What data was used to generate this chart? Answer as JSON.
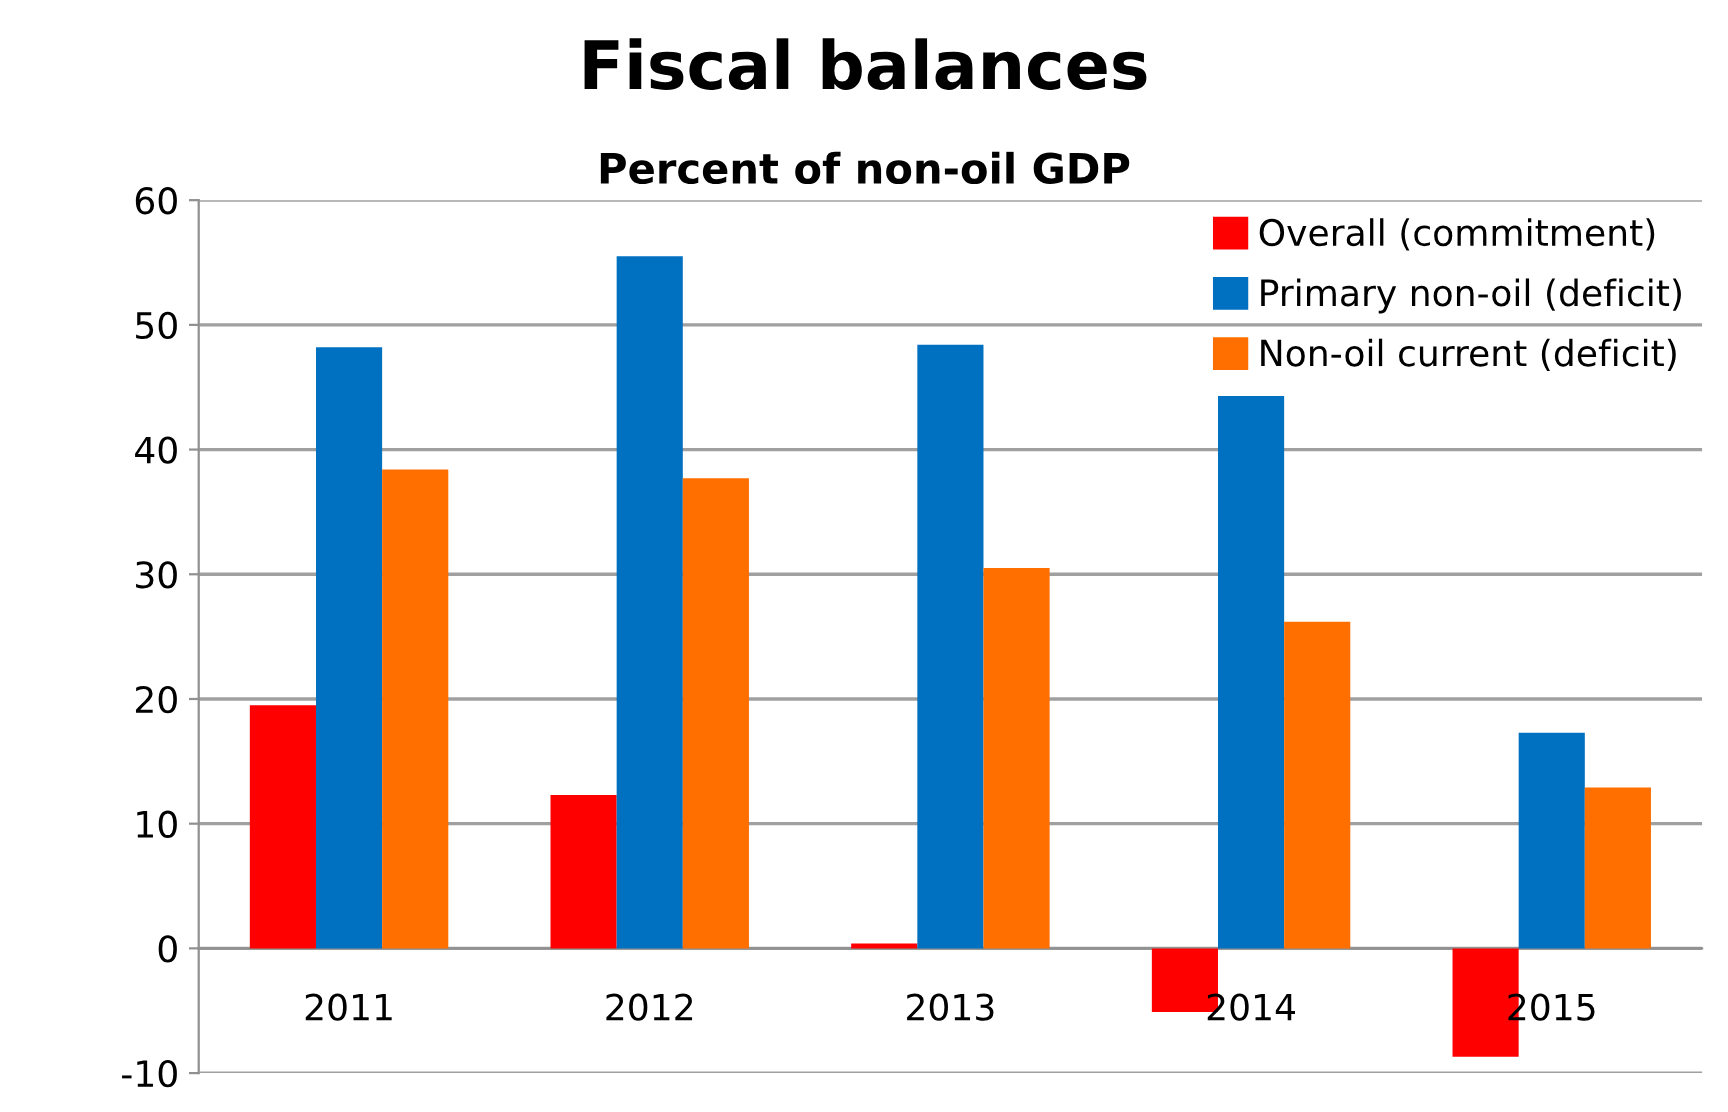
{
  "chart_data": {
    "type": "bar",
    "title": "Fiscal balances",
    "subtitle": "Percent of non-oil GDP",
    "categories": [
      "2011",
      "2012",
      "2013",
      "2014",
      "2015"
    ],
    "series": [
      {
        "name": "Overall (commitment)",
        "color": "#ff0000",
        "values": [
          19.5,
          12.3,
          0.4,
          -5.1,
          -8.7
        ]
      },
      {
        "name": "Primary non-oil (deficit)",
        "color": "#0070c0",
        "values": [
          48.2,
          55.5,
          48.4,
          44.3,
          17.3
        ]
      },
      {
        "name": "Non-oil current (deficit)",
        "color": "#ff6f00",
        "values": [
          38.4,
          37.7,
          30.5,
          26.2,
          12.9
        ]
      }
    ],
    "ylim": [
      -10,
      60
    ],
    "yticks": [
      -10,
      0,
      10,
      20,
      30,
      40,
      50,
      60
    ],
    "grid": "y",
    "legend": "top right"
  }
}
